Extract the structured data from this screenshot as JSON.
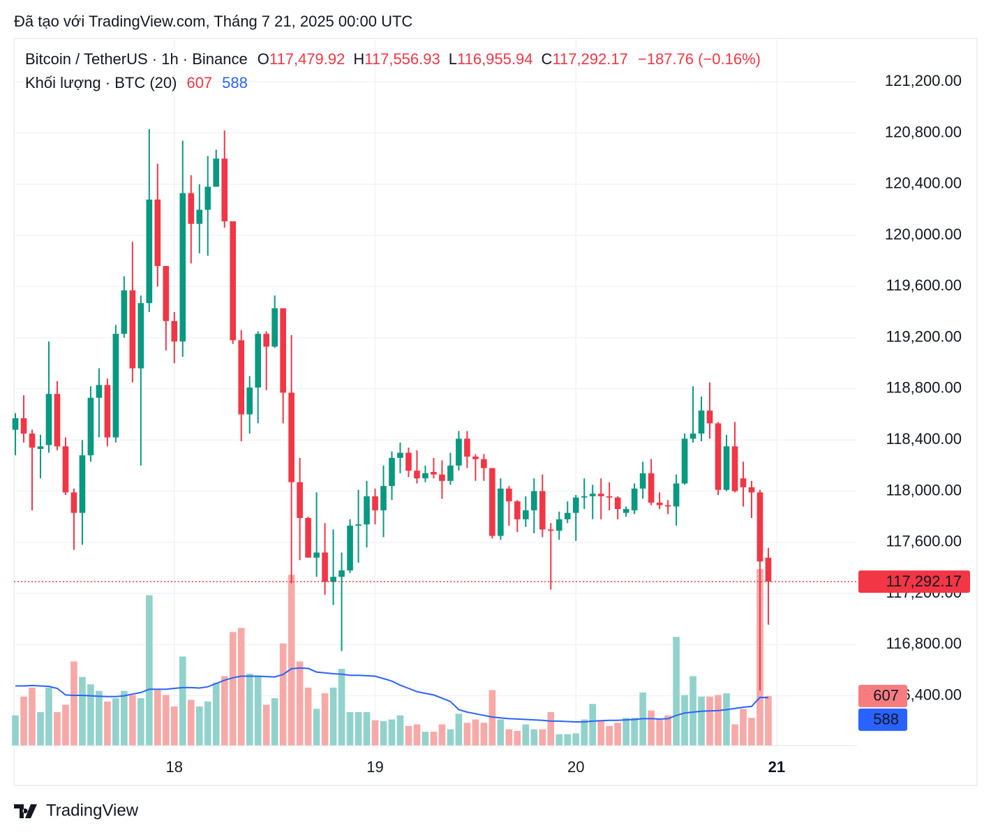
{
  "page_title": "Đã tạo với TradingView.com, Tháng 7 21, 2025 00:00 UTC",
  "footer": "TradingView",
  "chart_data": {
    "type": "candlestick",
    "header": {
      "symbol": "Bitcoin / TetherUS · 1h · Binance",
      "ohlc": [
        {
          "key": "O",
          "label": "117,479.92"
        },
        {
          "key": "H",
          "label": "117,556.93"
        },
        {
          "key": "L",
          "label": "116,955.94"
        },
        {
          "key": "C",
          "label": "117,292.17"
        }
      ],
      "change": "−187.76 (−0.16%)",
      "volume_title": "Khối lượng · BTC (20)"
    },
    "last_price_label": "117,292.17",
    "up_color": "#089981",
    "down_color": "#f23645",
    "volume_up_color": "#92d2cc",
    "volume_down_color": "#f7a9a7",
    "ma_color": "#2962ff",
    "open": [
      118480,
      118570,
      118450,
      118330,
      118360,
      118760,
      118350,
      117990,
      117830,
      118280,
      118730,
      118830,
      118420,
      119230,
      119570,
      118960,
      119470,
      120280,
      119760,
      119330,
      119170,
      120330,
      120090,
      120200,
      120380,
      120600,
      120110,
      119180,
      118600,
      118810,
      119230,
      119130,
      119430,
      118770,
      118070,
      117790,
      117480,
      117520,
      117290,
      117330,
      117380,
      117730,
      117740,
      117960,
      117850,
      118040,
      118260,
      118300,
      118160,
      118100,
      118150,
      118130,
      118080,
      118200,
      118410,
      118270,
      118250,
      118180,
      117650,
      118020,
      117920,
      117780,
      117850,
      118000,
      117700,
      117690,
      117780,
      117830,
      117950,
      117960,
      117980,
      117960,
      117950,
      117830,
      117850,
      118020,
      118140,
      117910,
      117890,
      117880,
      118060,
      118410,
      118450,
      118630,
      118530,
      118010,
      118350,
      118100,
      118030,
      117990,
      117479.92
    ],
    "high": [
      118610,
      118750,
      118480,
      118440,
      119170,
      118860,
      118420,
      118020,
      118400,
      118820,
      118960,
      118880,
      119300,
      119680,
      119950,
      119530,
      120830,
      120560,
      119760,
      119400,
      120740,
      120470,
      120400,
      120620,
      120670,
      120820,
      120110,
      119260,
      118900,
      119250,
      119250,
      119530,
      119430,
      119220,
      118260,
      117800,
      117990,
      117750,
      117700,
      117520,
      117780,
      118010,
      118080,
      118020,
      118200,
      118310,
      118380,
      118340,
      118320,
      118200,
      118260,
      118240,
      118300,
      118470,
      118470,
      118290,
      118290,
      118180,
      118100,
      118040,
      117930,
      117960,
      118100,
      118130,
      117750,
      117840,
      117920,
      117970,
      118100,
      118050,
      118100,
      118070,
      117960,
      117880,
      118060,
      118230,
      118250,
      117990,
      117930,
      118130,
      118450,
      118820,
      118740,
      118850,
      118540,
      118440,
      118540,
      118230,
      118080,
      118010,
      117556.93
    ],
    "low": [
      118280,
      118380,
      117850,
      118100,
      118300,
      118320,
      117970,
      117540,
      117580,
      118230,
      118420,
      118350,
      118380,
      119200,
      118850,
      118200,
      119400,
      119600,
      119100,
      119000,
      119050,
      119780,
      119860,
      119840,
      120380,
      120060,
      119150,
      118390,
      118450,
      118530,
      118790,
      119120,
      118530,
      117280,
      117460,
      117480,
      117330,
      117190,
      117110,
      116750,
      117360,
      117440,
      117560,
      117740,
      117640,
      117930,
      118140,
      118110,
      118060,
      118070,
      118100,
      117940,
      118050,
      118160,
      118180,
      118080,
      118080,
      117630,
      117620,
      117730,
      117680,
      117720,
      117670,
      117640,
      117230,
      117620,
      117750,
      117610,
      117860,
      117780,
      117780,
      117850,
      117780,
      117800,
      117820,
      117940,
      117890,
      117860,
      117820,
      117730,
      118050,
      118380,
      118390,
      118410,
      117970,
      118000,
      117990,
      117880,
      117790,
      116440,
      116955.94
    ],
    "close": [
      118570,
      118450,
      118340,
      118350,
      118760,
      118350,
      117990,
      117830,
      118280,
      118730,
      118830,
      118420,
      119230,
      119570,
      118960,
      119470,
      120280,
      119760,
      119330,
      119170,
      120330,
      120090,
      120200,
      120380,
      120600,
      120110,
      119180,
      118600,
      118810,
      119230,
      119130,
      119430,
      118770,
      118070,
      117790,
      117480,
      117520,
      117290,
      117330,
      117380,
      117730,
      117740,
      117960,
      117850,
      118040,
      118260,
      118300,
      118160,
      118100,
      118140,
      118130,
      118080,
      118200,
      118410,
      118270,
      118250,
      118180,
      117650,
      118020,
      117920,
      117780,
      117850,
      118000,
      117700,
      117690,
      117780,
      117830,
      117950,
      117960,
      117980,
      117960,
      117950,
      117860,
      117860,
      118020,
      118140,
      117910,
      117890,
      117880,
      118060,
      118410,
      118450,
      118630,
      118530,
      118010,
      118350,
      118000,
      118030,
      117990,
      117450,
      117292.17
    ],
    "volume": [
      370,
      600,
      710,
      410,
      710,
      410,
      500,
      1030,
      840,
      750,
      670,
      540,
      580,
      670,
      620,
      580,
      1840,
      680,
      620,
      480,
      1090,
      560,
      480,
      540,
      770,
      850,
      1390,
      1440,
      880,
      850,
      500,
      580,
      1250,
      2090,
      1030,
      710,
      450,
      640,
      710,
      940,
      410,
      410,
      410,
      310,
      300,
      320,
      370,
      240,
      260,
      170,
      170,
      260,
      200,
      390,
      280,
      320,
      280,
      680,
      320,
      200,
      180,
      260,
      200,
      200,
      410,
      140,
      140,
      150,
      320,
      510,
      310,
      240,
      280,
      340,
      340,
      650,
      430,
      320,
      370,
      1330,
      620,
      850,
      600,
      600,
      620,
      640,
      260,
      450,
      340,
      2160,
      607
    ],
    "volume_ma": [
      730,
      730,
      735,
      730,
      725,
      700,
      620,
      615,
      615,
      610,
      605,
      600,
      600,
      610,
      630,
      650,
      690,
      690,
      690,
      700,
      710,
      710,
      705,
      720,
      760,
      800,
      830,
      850,
      850,
      850,
      845,
      840,
      870,
      940,
      950,
      945,
      900,
      890,
      880,
      875,
      860,
      860,
      855,
      850,
      820,
      790,
      740,
      700,
      660,
      640,
      620,
      580,
      540,
      440,
      410,
      390,
      370,
      350,
      340,
      330,
      325,
      320,
      315,
      310,
      300,
      300,
      295,
      290,
      290,
      300,
      305,
      310,
      310,
      315,
      320,
      330,
      330,
      325,
      330,
      370,
      400,
      410,
      420,
      425,
      430,
      440,
      455,
      470,
      480,
      590,
      588
    ],
    "xlim": [
      -0.17,
      100.6
    ],
    "xticks": [
      {
        "value": 19,
        "label": "18"
      },
      {
        "value": 43,
        "label": "19"
      },
      {
        "value": 67,
        "label": "20"
      },
      {
        "value": 91,
        "label": "21"
      }
    ],
    "ylim": [
      116010,
      121540
    ],
    "yticks": [
      {
        "value": 116400,
        "label": "116,400.00"
      },
      {
        "value": 116800,
        "label": "116,800.00"
      },
      {
        "value": 117200,
        "label": "117,200.00"
      },
      {
        "value": 117600,
        "label": "117,600.00"
      },
      {
        "value": 118000,
        "label": "118,000.00"
      },
      {
        "value": 118400,
        "label": "118,400.00"
      },
      {
        "value": 118800,
        "label": "118,800.00"
      },
      {
        "value": 119200,
        "label": "119,200.00"
      },
      {
        "value": 119600,
        "label": "119,600.00"
      },
      {
        "value": 120000,
        "label": "120,000.00"
      },
      {
        "value": 120400,
        "label": "120,400.00"
      },
      {
        "value": 120800,
        "label": "120,800.00"
      },
      {
        "value": 121200,
        "label": "121,200.00"
      }
    ],
    "volume_lim": [
      0,
      2400
    ],
    "grid": true
  }
}
